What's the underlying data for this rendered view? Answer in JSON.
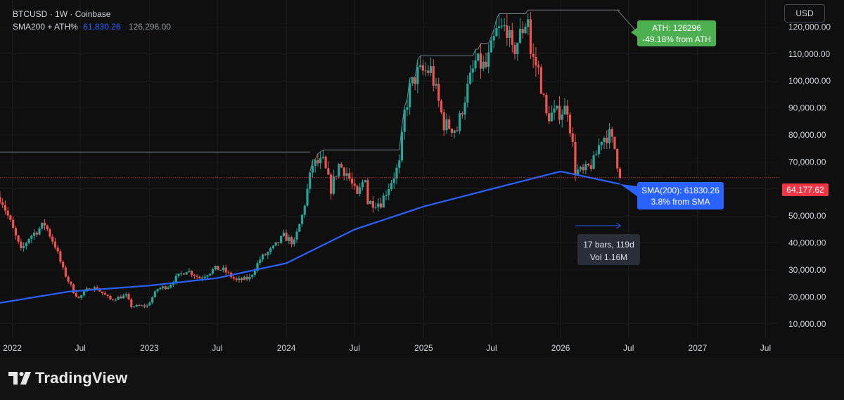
{
  "legend": {
    "symbol": "BTCUSD",
    "interval": "1W",
    "exchange": "Coinbase",
    "sep": "·",
    "indicator_name": "SMA200 + ATH%",
    "sma_value": "61,830.26",
    "ath_value": "126,296.00"
  },
  "currency_button": "USD",
  "brand": "TradingView",
  "annotations": {
    "ath_line1": "ATH: 126296",
    "ath_line2": "-49.18% from ATH",
    "sma_line1": "SMA(200): 61830.26",
    "sma_line2": "3.8% from SMA",
    "measure_line1": "17 bars, 119d",
    "measure_line2": "Vol 1.16M",
    "last_price": "64,177.62"
  },
  "colors": {
    "background": "#0f0f0f",
    "up": "#26a69a",
    "down": "#ef5350",
    "sma": "#2962ff",
    "ath_label": "#4caf50",
    "price_tag": "#f23645",
    "grid": "#1e1e1e"
  },
  "chart_data": {
    "type": "candlestick",
    "timeframe": "1W",
    "y_ticks": [
      "10,000.00",
      "20,000.00",
      "30,000.00",
      "40,000.00",
      "50,000.00",
      "60,000.00",
      "70,000.00",
      "80,000.00",
      "90,000.00",
      "100,000.00",
      "110,000.00",
      "120,000.00"
    ],
    "y_tick_values": [
      10000,
      20000,
      30000,
      40000,
      50000,
      60000,
      70000,
      80000,
      90000,
      100000,
      110000,
      120000
    ],
    "ylim": [
      5000,
      130000
    ],
    "x_ticks": [
      {
        "label": "2022",
        "date": "2022-01-01"
      },
      {
        "label": "Jul",
        "date": "2022-07-01"
      },
      {
        "label": "2023",
        "date": "2023-01-01"
      },
      {
        "label": "Jul",
        "date": "2023-07-01"
      },
      {
        "label": "2024",
        "date": "2024-01-01"
      },
      {
        "label": "Jul",
        "date": "2024-07-01"
      },
      {
        "label": "2025",
        "date": "2025-01-01"
      },
      {
        "label": "Jul",
        "date": "2025-07-01"
      },
      {
        "label": "2026",
        "date": "2026-01-01"
      },
      {
        "label": "Jul",
        "date": "2026-07-01"
      },
      {
        "label": "2027",
        "date": "2027-01-01"
      },
      {
        "label": "Jul",
        "date": "2027-07-01"
      }
    ],
    "xlim": [
      "2021-11-29",
      "2027-08-01"
    ],
    "price_anchors": [
      [
        "2021-12-01",
        57000
      ],
      [
        "2021-12-27",
        47500
      ],
      [
        "2022-01-24",
        37000
      ],
      [
        "2022-02-14",
        42000
      ],
      [
        "2022-03-28",
        47000
      ],
      [
        "2022-04-25",
        39000
      ],
      [
        "2022-05-16",
        30000
      ],
      [
        "2022-06-13",
        22000
      ],
      [
        "2022-06-27",
        19500
      ],
      [
        "2022-07-25",
        23500
      ],
      [
        "2022-08-15",
        23000
      ],
      [
        "2022-09-19",
        19000
      ],
      [
        "2022-10-31",
        20500
      ],
      [
        "2022-11-14",
        16500
      ],
      [
        "2022-12-26",
        16700
      ],
      [
        "2023-01-23",
        23000
      ],
      [
        "2023-02-20",
        24000
      ],
      [
        "2023-03-13",
        27000
      ],
      [
        "2023-04-10",
        30000
      ],
      [
        "2023-05-15",
        27000
      ],
      [
        "2023-06-26",
        30500
      ],
      [
        "2023-07-17",
        30000
      ],
      [
        "2023-08-21",
        26000
      ],
      [
        "2023-09-25",
        27000
      ],
      [
        "2023-10-23",
        34000
      ],
      [
        "2023-11-27",
        38000
      ],
      [
        "2023-12-25",
        42500
      ],
      [
        "2024-01-22",
        40000
      ],
      [
        "2024-02-12",
        50000
      ],
      [
        "2024-03-11",
        69000
      ],
      [
        "2024-04-08",
        70000
      ],
      [
        "2024-04-29",
        60000
      ],
      [
        "2024-05-20",
        69000
      ],
      [
        "2024-06-10",
        66000
      ],
      [
        "2024-07-08",
        57000
      ],
      [
        "2024-07-29",
        65000
      ],
      [
        "2024-08-05",
        55000
      ],
      [
        "2024-09-09",
        55000
      ],
      [
        "2024-10-14",
        65000
      ],
      [
        "2024-10-28",
        69000
      ],
      [
        "2024-11-11",
        88000
      ],
      [
        "2024-11-25",
        97000
      ],
      [
        "2024-12-16",
        103000
      ],
      [
        "2025-01-20",
        104000
      ],
      [
        "2025-02-24",
        84000
      ],
      [
        "2025-03-31",
        82000
      ],
      [
        "2025-04-21",
        94000
      ],
      [
        "2025-05-19",
        107000
      ],
      [
        "2025-06-16",
        105000
      ],
      [
        "2025-07-14",
        118000
      ],
      [
        "2025-08-11",
        120000
      ],
      [
        "2025-08-25",
        110000
      ],
      [
        "2025-10-06",
        124000
      ],
      [
        "2025-10-13",
        110000
      ],
      [
        "2025-11-03",
        104000
      ],
      [
        "2025-11-24",
        87000
      ],
      [
        "2025-12-22",
        88000
      ],
      [
        "2026-01-19",
        90000
      ],
      [
        "2026-02-02",
        76000
      ],
      [
        "2026-02-09",
        67000
      ],
      [
        "2026-03-02",
        66000
      ],
      [
        "2026-03-30",
        70000
      ],
      [
        "2026-04-20",
        79000
      ],
      [
        "2026-05-11",
        80000
      ],
      [
        "2026-05-25",
        75000
      ],
      [
        "2026-06-08",
        64177.62
      ]
    ],
    "sma200_anchors": [
      [
        "2021-11-29",
        17800
      ],
      [
        "2022-06-01",
        22000
      ],
      [
        "2023-01-01",
        24200
      ],
      [
        "2023-07-01",
        27000
      ],
      [
        "2024-01-01",
        32500
      ],
      [
        "2024-07-01",
        45000
      ],
      [
        "2025-01-01",
        53500
      ],
      [
        "2025-07-01",
        60000
      ],
      [
        "2026-01-01",
        66500
      ],
      [
        "2026-06-08",
        61830.26
      ]
    ],
    "ath": 126296,
    "ath_start": "2025-10-06",
    "previous_high": 73700,
    "last_close": 64177.62,
    "sma200_last": 61830.26,
    "measure": {
      "from": "2026-02-09",
      "to": "2026-06-08",
      "bars": 17,
      "days": 119,
      "volume": "1.16M"
    }
  }
}
